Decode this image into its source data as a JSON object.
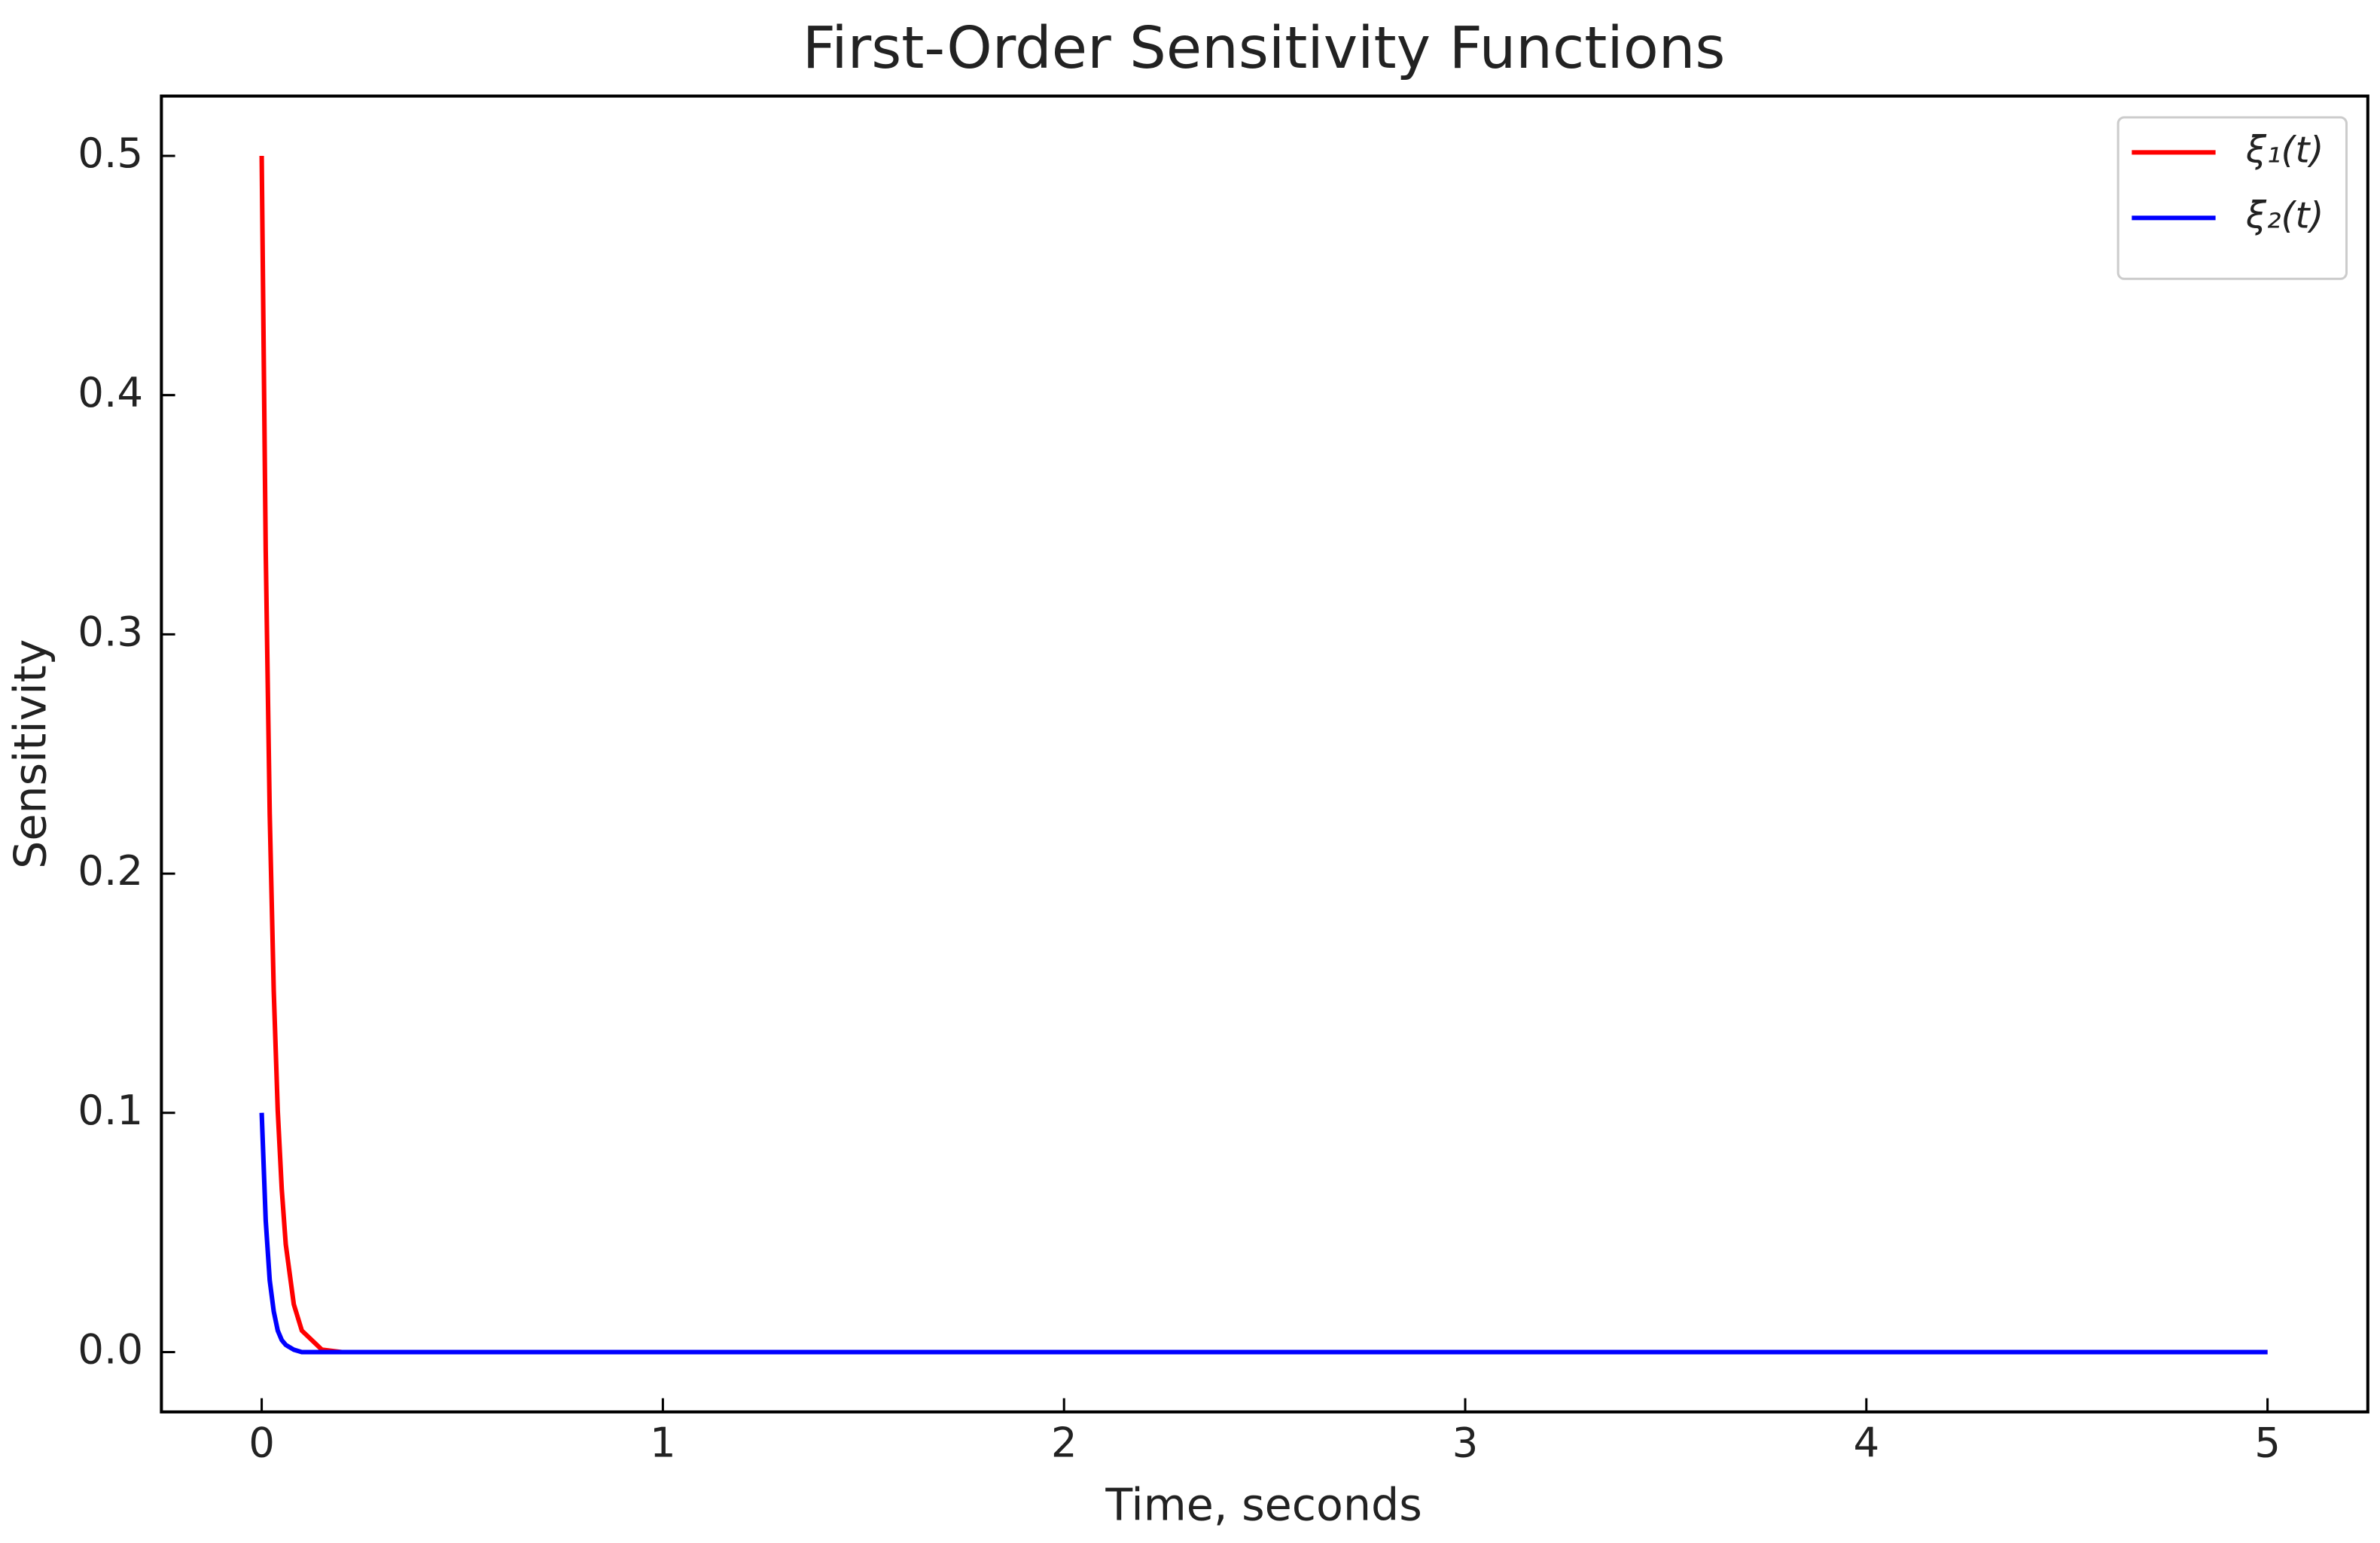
{
  "chart_data": {
    "type": "line",
    "title": "First-Order Sensitivity Functions",
    "x_label": "Time, seconds",
    "y_label": "Sensitivity",
    "x": [
      0,
      0.01,
      0.02,
      0.03,
      0.04,
      0.05,
      0.06,
      0.08,
      0.1,
      0.15,
      0.2,
      0.5,
      1,
      2,
      3,
      4,
      5
    ],
    "series": [
      {
        "name": "ξ₁(t)",
        "color": "#ff0000",
        "values": [
          0.5,
          0.335,
          0.225,
          0.151,
          0.101,
          0.068,
          0.045,
          0.02,
          0.009,
          0.001,
          0,
          0,
          0,
          0,
          0,
          0,
          0
        ]
      },
      {
        "name": "ξ₂(t)",
        "color": "#0000ff",
        "values": [
          0.1,
          0.055,
          0.03,
          0.017,
          0.009,
          0.005,
          0.003,
          0.001,
          0,
          0,
          0,
          0,
          0,
          0,
          0,
          0,
          0
        ]
      }
    ],
    "xlim": [
      -0.25,
      5.25
    ],
    "ylim": [
      -0.025,
      0.525
    ],
    "xticks": [
      0,
      1,
      2,
      3,
      4,
      5
    ],
    "yticks": [
      {
        "value": 0,
        "label": "0.0"
      },
      0.1,
      0.2,
      0.3,
      0.4,
      0.5
    ],
    "grid": false,
    "legend": "upper right"
  }
}
